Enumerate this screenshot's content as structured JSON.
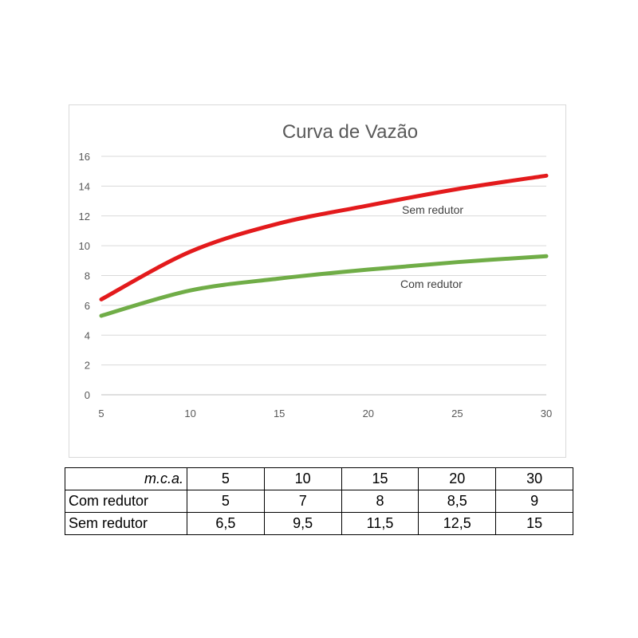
{
  "chart_data": {
    "type": "line",
    "title": "Curva de Vazão",
    "xlabel": "",
    "ylabel": "",
    "xlim": [
      5,
      30
    ],
    "ylim": [
      0,
      16
    ],
    "x_ticks": [
      5,
      10,
      15,
      20,
      25,
      30
    ],
    "y_ticks": [
      0,
      2,
      4,
      6,
      8,
      10,
      12,
      14,
      16
    ],
    "grid": "horizontal",
    "legend": "none",
    "series": [
      {
        "name": "Sem redutor",
        "color": "#e31a1c",
        "x": [
          5,
          10,
          15,
          20,
          25,
          30
        ],
        "y": [
          6.4,
          9.6,
          11.5,
          12.7,
          13.8,
          14.7
        ]
      },
      {
        "name": "Com redutor",
        "color": "#70ad47",
        "x": [
          5,
          10,
          15,
          20,
          25,
          30
        ],
        "y": [
          5.3,
          7.0,
          7.8,
          8.4,
          8.9,
          9.3
        ]
      }
    ]
  },
  "table": {
    "header": {
      "label": "m.c.a.",
      "values": [
        "5",
        "10",
        "15",
        "20",
        "30"
      ]
    },
    "rows": [
      {
        "label": "Com redutor",
        "values": [
          "5",
          "7",
          "8",
          "8,5",
          "9"
        ]
      },
      {
        "label": "Sem redutor",
        "values": [
          "6,5",
          "9,5",
          "11,5",
          "12,5",
          "15"
        ]
      }
    ]
  }
}
